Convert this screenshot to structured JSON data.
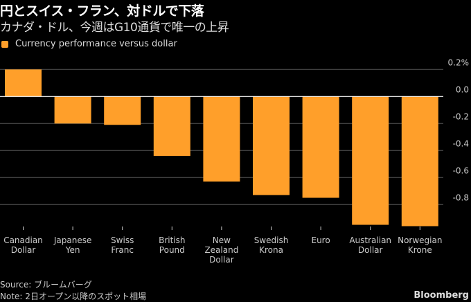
{
  "header": {
    "title": "円とスイス・フラン、対ドルで下落",
    "subtitle": "カナダ・ドル、今週はG10通貨で唯一の上昇"
  },
  "legend": {
    "label": "Currency performance versus dollar",
    "color": "#ff9f2a"
  },
  "footer": {
    "source": "Source: ブルームバーグ",
    "note": "Note: 2日オープン以降のスポット相場",
    "brand": "Bloomberg"
  },
  "chart_data": {
    "type": "bar",
    "title": "円とスイス・フラン、対ドルで下落",
    "subtitle": "カナダ・ドル、今週はG10通貨で唯一の上昇",
    "xlabel": "",
    "ylabel": "",
    "unit": "%",
    "categories": [
      [
        "Canadian",
        "Dollar"
      ],
      [
        "Japanese",
        "Yen"
      ],
      [
        "Swiss",
        "Franc"
      ],
      [
        "British",
        "Pound"
      ],
      [
        "New",
        "Zealand",
        "Dollar"
      ],
      [
        "Swedish",
        "Krona"
      ],
      [
        "Euro"
      ],
      [
        "Australian",
        "Dollar"
      ],
      [
        "Norwegian",
        "Krone"
      ]
    ],
    "series": [
      {
        "name": "Currency performance versus dollar",
        "color": "#ff9f2a",
        "values": [
          0.2,
          -0.2,
          -0.21,
          -0.44,
          -0.63,
          -0.73,
          -0.75,
          -0.95,
          -0.96
        ]
      }
    ],
    "ylim": [
      -1.0,
      0.2
    ],
    "yticks": [
      0.2,
      0.0,
      -0.2,
      -0.4,
      -0.6,
      -0.8
    ],
    "ytick_labels": [
      "0.2%",
      "0.0",
      "-0.2",
      "-0.4",
      "-0.6",
      "-0.8"
    ],
    "grid": true,
    "legend_position": "top-left",
    "axis_side": "right"
  }
}
